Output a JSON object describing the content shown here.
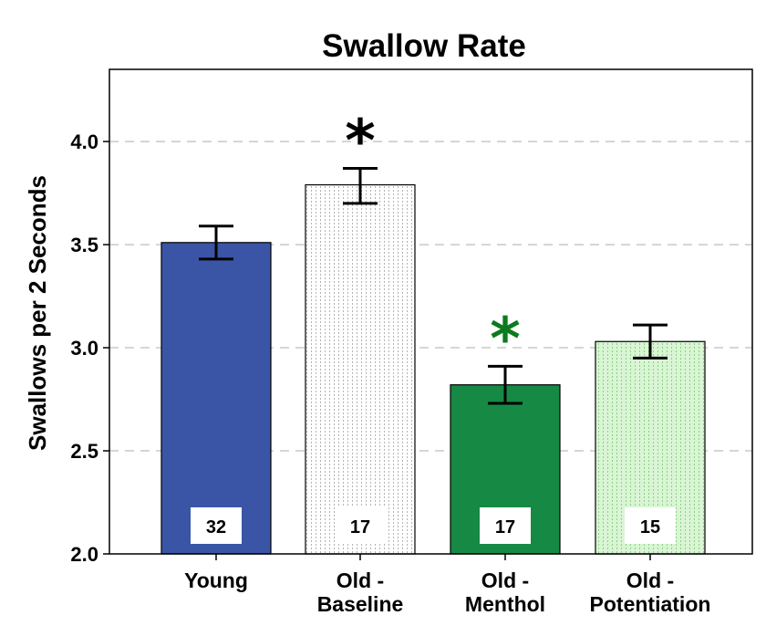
{
  "chart_data": {
    "type": "bar",
    "title": "Swallow Rate",
    "xlabel": "",
    "ylabel": "Swallows per 2 Seconds",
    "ylim": [
      2.0,
      4.35
    ],
    "yticks": [
      "2.0",
      "2.5",
      "3.0",
      "3.5",
      "4.0"
    ],
    "grid": "horizontal-dashed",
    "categories": [
      [
        "Young"
      ],
      [
        "Old -",
        "Baseline"
      ],
      [
        "Old -",
        "Menthol"
      ],
      [
        "Old -",
        "Potentiation"
      ]
    ],
    "values": [
      3.51,
      3.79,
      2.82,
      3.03
    ],
    "error_low": [
      3.43,
      3.7,
      2.73,
      2.95
    ],
    "error_high": [
      3.59,
      3.87,
      2.91,
      3.11
    ],
    "n_labels": [
      "32",
      "17",
      "17",
      "15"
    ],
    "significance": [
      "",
      "*",
      "*",
      ""
    ],
    "colors": {
      "bars": [
        "#3a55a5",
        "#ffffff",
        "#168a45",
        "#d9f5d4"
      ],
      "bar_patterns": [
        "none",
        "dots",
        "none",
        "dots"
      ],
      "significance": [
        "#000000",
        "#000000",
        "#0b7a1f",
        "#000000"
      ],
      "grid": "#c8c8c8",
      "axis": "#000000"
    }
  }
}
